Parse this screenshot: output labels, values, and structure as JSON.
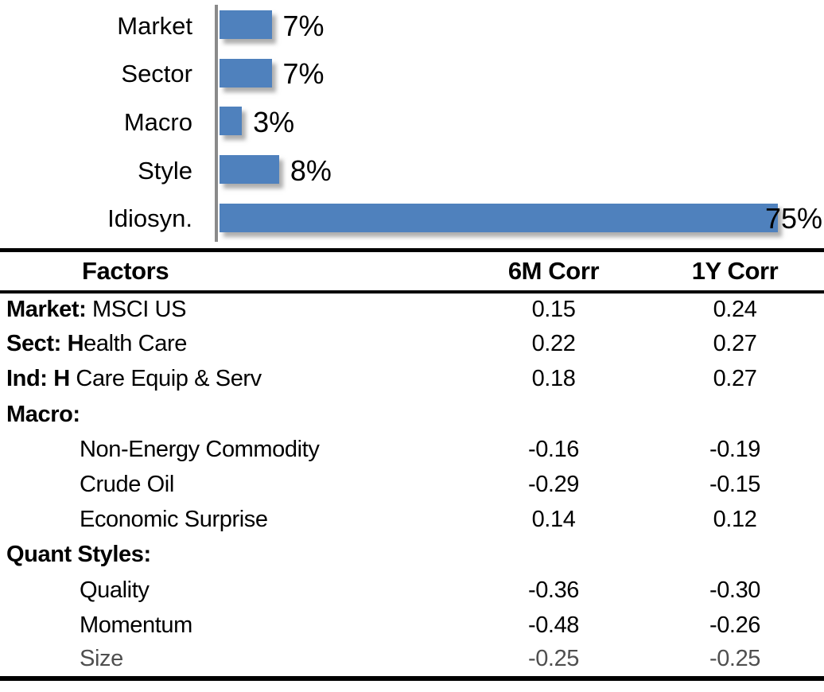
{
  "chart_data": {
    "type": "bar",
    "orientation": "horizontal",
    "title": "",
    "categories": [
      "Market",
      "Sector",
      "Macro",
      "Style",
      "Idiosyn."
    ],
    "values": [
      7,
      7,
      3,
      8,
      75
    ],
    "value_labels": [
      "7%",
      "7%",
      "3%",
      "8%",
      "75%"
    ],
    "unit": "%",
    "xlim": [
      0,
      81
    ],
    "grid": false,
    "legend": false,
    "bar_color": "#4F81BD",
    "axis_color": "#8A8A8A"
  },
  "table": {
    "headers": {
      "factor": "Factors",
      "corr6m": "6M Corr",
      "corr1y": "1Y Corr"
    },
    "muted_color": "#4F4F4F",
    "rows": [
      {
        "bold": "Market:",
        "text": " MSCI US",
        "indent": false,
        "muted": false,
        "corr6m": "0.15",
        "corr1y": "0.24"
      },
      {
        "bold": "Sect: H",
        "text": "ealth Care",
        "indent": false,
        "muted": false,
        "corr6m": "0.22",
        "corr1y": "0.27"
      },
      {
        "bold": "Ind: H",
        "text": " Care Equip & Serv",
        "indent": false,
        "muted": false,
        "corr6m": "0.18",
        "corr1y": "0.27"
      },
      {
        "bold": "Macro:",
        "text": "",
        "indent": false,
        "muted": false,
        "corr6m": "",
        "corr1y": ""
      },
      {
        "bold": "",
        "text": "Non-Energy Commodity",
        "indent": true,
        "muted": false,
        "corr6m": "-0.16",
        "corr1y": "-0.19"
      },
      {
        "bold": "",
        "text": "Crude Oil",
        "indent": true,
        "muted": false,
        "corr6m": "-0.29",
        "corr1y": "-0.15"
      },
      {
        "bold": "",
        "text": "Economic Surprise",
        "indent": true,
        "muted": false,
        "corr6m": "0.14",
        "corr1y": "0.12"
      },
      {
        "bold": "Quant Styles:",
        "text": "",
        "indent": false,
        "muted": false,
        "corr6m": "",
        "corr1y": ""
      },
      {
        "bold": "",
        "text": "Quality",
        "indent": true,
        "muted": false,
        "corr6m": "-0.36",
        "corr1y": "-0.30"
      },
      {
        "bold": "",
        "text": "Momentum",
        "indent": true,
        "muted": false,
        "corr6m": "-0.48",
        "corr1y": "-0.26"
      },
      {
        "bold": "",
        "text": "Size",
        "indent": true,
        "muted": true,
        "corr6m": "-0.25",
        "corr1y": "-0.25"
      }
    ]
  }
}
